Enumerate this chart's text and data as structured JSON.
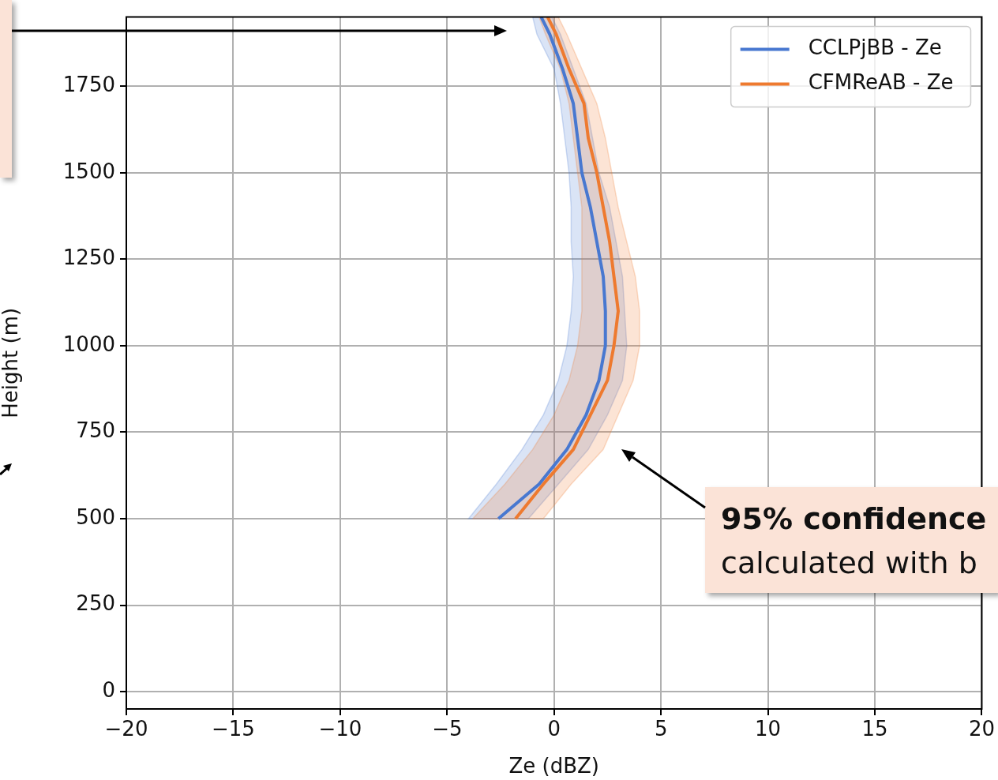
{
  "chart_data": {
    "type": "line",
    "orientation": "horizontal",
    "xlabel": "Ze (dBZ)",
    "ylabel": "Height (m)",
    "xlim": [
      -20,
      20
    ],
    "xticks": [
      {
        "value": -20,
        "label": "−20"
      },
      {
        "value": -15,
        "label": "−15"
      },
      {
        "value": -10,
        "label": "−10"
      },
      {
        "value": -5,
        "label": "−5"
      },
      0,
      5,
      10,
      15,
      20
    ],
    "ylim": [
      -50,
      1950
    ],
    "yticks": [
      0,
      250,
      500,
      750,
      1000,
      1250,
      1500,
      1750
    ],
    "grid": true,
    "legend": "top right",
    "annotations": [
      "95% confidence",
      "calculated with b"
    ],
    "series": [
      {
        "name": "CCLPjBB - Ze",
        "color": "#4878d0",
        "x": [
          500,
          600,
          700,
          800,
          900,
          1000,
          1100,
          1200,
          1300,
          1400,
          1500,
          1600,
          1700,
          1800,
          1900,
          1950
        ],
        "values": [
          -2.6,
          -0.7,
          0.6,
          1.5,
          2.1,
          2.4,
          2.4,
          2.3,
          2.0,
          1.7,
          1.3,
          1.1,
          0.9,
          0.4,
          -0.2,
          -0.6
        ],
        "lower": [
          -4.0,
          -2.7,
          -1.5,
          -0.5,
          0.2,
          0.6,
          0.8,
          0.9,
          0.8,
          0.8,
          0.7,
          0.5,
          0.3,
          0.0,
          -0.8,
          -1.0
        ],
        "upper": [
          -1.2,
          0.2,
          1.6,
          2.5,
          3.2,
          3.4,
          3.3,
          3.2,
          2.9,
          2.6,
          2.1,
          1.8,
          1.5,
          0.9,
          0.3,
          -0.1
        ]
      },
      {
        "name": "CFMReAB - Ze",
        "color": "#ee7a2f",
        "x": [
          500,
          600,
          700,
          800,
          900,
          1000,
          1100,
          1200,
          1300,
          1400,
          1500,
          1600,
          1700,
          1800,
          1900,
          1950
        ],
        "values": [
          -1.8,
          -0.5,
          0.9,
          1.7,
          2.5,
          2.8,
          3.0,
          2.8,
          2.6,
          2.3,
          2.0,
          1.6,
          1.4,
          0.7,
          0.1,
          -0.3
        ],
        "lower": [
          -3.8,
          -2.3,
          -1.0,
          0.0,
          0.7,
          1.1,
          1.3,
          1.3,
          1.3,
          1.3,
          1.1,
          0.9,
          0.7,
          0.3,
          -0.4,
          -0.7
        ],
        "upper": [
          -0.5,
          0.8,
          2.3,
          3.0,
          3.7,
          4.0,
          4.0,
          3.8,
          3.4,
          3.0,
          2.7,
          2.4,
          2.0,
          1.3,
          0.6,
          0.2
        ]
      }
    ]
  }
}
